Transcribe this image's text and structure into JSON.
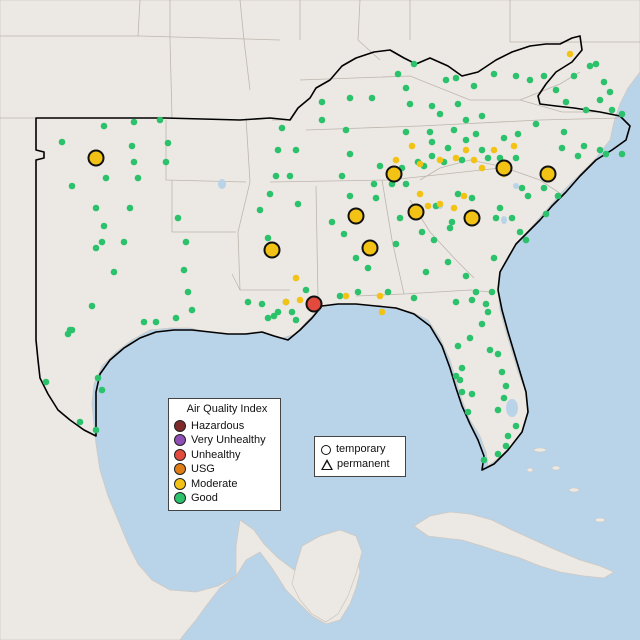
{
  "legend": {
    "title": "Air Quality Index",
    "items": [
      {
        "label": "Hazardous",
        "color": "#7e2a2a"
      },
      {
        "label": "Very Unhealthy",
        "color": "#8f4fb5"
      },
      {
        "label": "Unhealthy",
        "color": "#e14a3c"
      },
      {
        "label": "USG",
        "color": "#e07d16"
      },
      {
        "label": "Moderate",
        "color": "#f2c314"
      },
      {
        "label": "Good",
        "color": "#2bc26b"
      }
    ]
  },
  "monitor_legend": {
    "temporary_label": "temporary",
    "permanent_label": "permanent"
  },
  "map": {
    "land_color": "#ece8e3",
    "water_color": "#b9d3e8",
    "highlight_border_color": "#000000"
  }
}
